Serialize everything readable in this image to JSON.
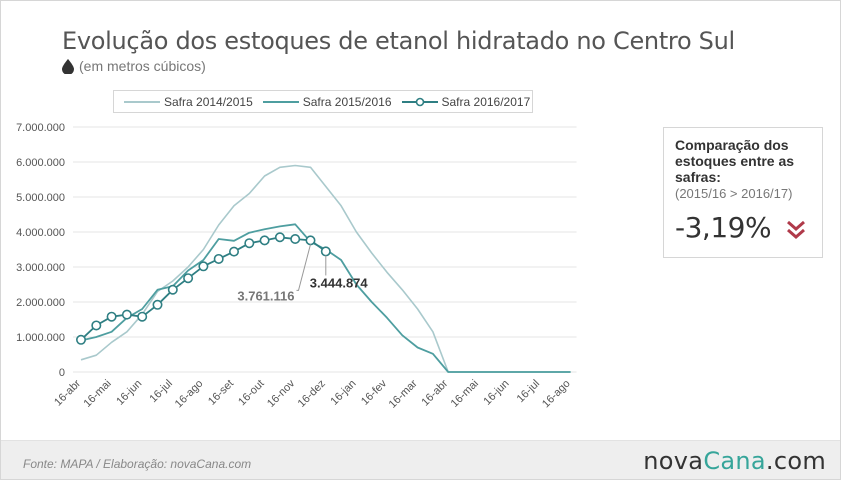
{
  "header": {
    "title": "Evolução dos estoques de etanol hidratado no Centro Sul",
    "subtitle": "(em metros cúbicos)",
    "subtitle_icon": "droplet-icon"
  },
  "side_panel": {
    "title": "Comparação dos estoques entre as safras:",
    "comparison": "(2015/16 > 2016/17)",
    "value": "-3,19%",
    "icon": "double-chevron-down-icon",
    "icon_color": "#b03a4a"
  },
  "footer": {
    "source": "Fonte: MAPA  / Elaboração: novaCana.com",
    "brand_part1": "nova",
    "brand_part2": "Cana",
    "brand_part3": ".com"
  },
  "chart_data": {
    "type": "line",
    "x_labels": [
      "16-abr",
      "16-mai",
      "16-jun",
      "16-jul",
      "16-ago",
      "16-set",
      "16-out",
      "16-nov",
      "16-dez",
      "16-jan",
      "16-fev",
      "16-mar",
      "16-abr",
      "16-mai",
      "16-jun",
      "16-jul",
      "16-ago"
    ],
    "y_ticks": [
      "0",
      "1.000.000",
      "2.000.000",
      "3.000.000",
      "4.000.000",
      "5.000.000",
      "6.000.000",
      "7.000.000"
    ],
    "ylim": [
      0,
      7000000
    ],
    "grid": true,
    "legend_position": "top",
    "series": [
      {
        "name": "Safra 2014/2015",
        "color": "#a9c9cc",
        "marker": false,
        "points": [
          [
            0.0,
            350000
          ],
          [
            0.5,
            480000
          ],
          [
            1.0,
            850000
          ],
          [
            1.5,
            1150000
          ],
          [
            2.0,
            1650000
          ],
          [
            2.5,
            2300000
          ],
          [
            3.0,
            2600000
          ],
          [
            3.5,
            3000000
          ],
          [
            4.0,
            3500000
          ],
          [
            4.5,
            4200000
          ],
          [
            5.0,
            4750000
          ],
          [
            5.5,
            5100000
          ],
          [
            6.0,
            5600000
          ],
          [
            6.5,
            5850000
          ],
          [
            7.0,
            5900000
          ],
          [
            7.5,
            5850000
          ],
          [
            8.0,
            5300000
          ],
          [
            8.5,
            4750000
          ],
          [
            9.0,
            4000000
          ],
          [
            9.5,
            3400000
          ],
          [
            10.0,
            2850000
          ],
          [
            10.5,
            2350000
          ],
          [
            11.0,
            1800000
          ],
          [
            11.5,
            1150000
          ],
          [
            12.0,
            0
          ],
          [
            16.0,
            0
          ]
        ]
      },
      {
        "name": "Safra 2015/2016",
        "color": "#4e9ea0",
        "marker": false,
        "points": [
          [
            0.0,
            900000
          ],
          [
            0.5,
            1000000
          ],
          [
            1.0,
            1150000
          ],
          [
            1.5,
            1550000
          ],
          [
            2.0,
            1800000
          ],
          [
            2.5,
            2350000
          ],
          [
            3.0,
            2450000
          ],
          [
            3.5,
            2900000
          ],
          [
            4.0,
            3200000
          ],
          [
            4.5,
            3800000
          ],
          [
            5.0,
            3750000
          ],
          [
            5.5,
            3980000
          ],
          [
            6.0,
            4080000
          ],
          [
            6.5,
            4160000
          ],
          [
            7.0,
            4220000
          ],
          [
            7.5,
            3720000
          ],
          [
            8.0,
            3500000
          ],
          [
            8.5,
            3200000
          ],
          [
            9.0,
            2500000
          ],
          [
            9.5,
            2000000
          ],
          [
            10.0,
            1550000
          ],
          [
            10.5,
            1050000
          ],
          [
            11.0,
            700000
          ],
          [
            11.5,
            520000
          ],
          [
            12.0,
            0
          ],
          [
            16.0,
            0
          ]
        ]
      },
      {
        "name": "Safra 2016/2017",
        "color": "#2f7f83",
        "marker": true,
        "points": [
          [
            0.0,
            920000
          ],
          [
            0.5,
            1330000
          ],
          [
            1.0,
            1580000
          ],
          [
            1.5,
            1640000
          ],
          [
            2.0,
            1580000
          ],
          [
            2.5,
            1920000
          ],
          [
            3.0,
            2350000
          ],
          [
            3.5,
            2680000
          ],
          [
            4.0,
            3020000
          ],
          [
            4.5,
            3230000
          ],
          [
            5.0,
            3440000
          ],
          [
            5.5,
            3680000
          ],
          [
            6.0,
            3760000
          ],
          [
            6.5,
            3850000
          ],
          [
            7.0,
            3800000
          ],
          [
            7.5,
            3761116
          ],
          [
            8.0,
            3444874
          ]
        ]
      }
    ],
    "annotations": [
      {
        "label": "3.761.116",
        "series": "Safra 2016/2017",
        "x": 7.5,
        "y": 3761116
      },
      {
        "label": "3.444.874",
        "series": "Safra 2016/2017",
        "x": 8.0,
        "y": 3444874
      }
    ]
  }
}
